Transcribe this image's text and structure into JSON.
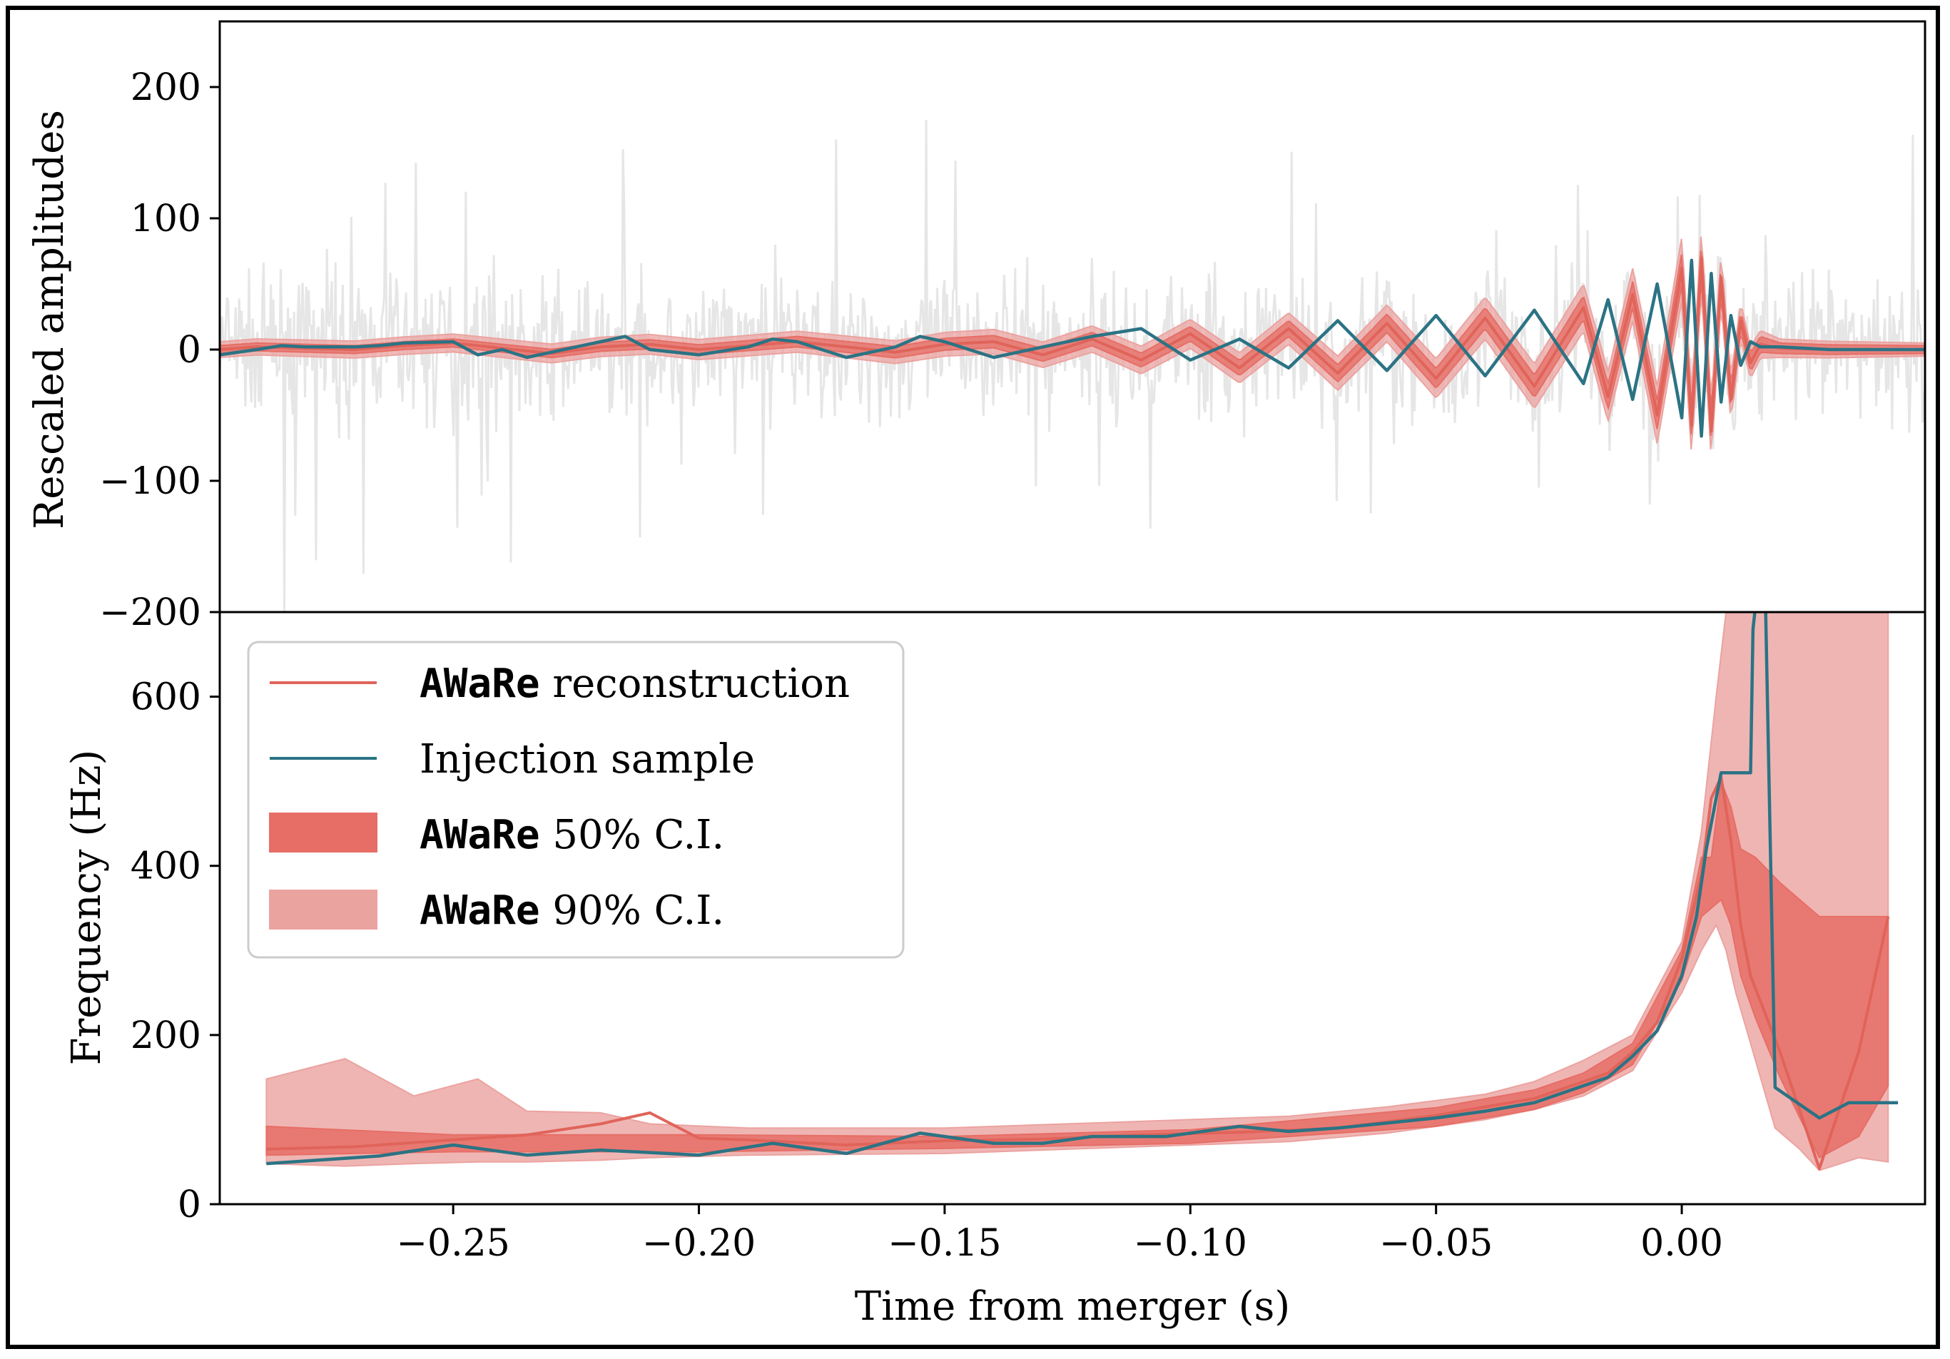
{
  "colors": {
    "reconstruction": "#e0645a",
    "injection": "#2b7384",
    "ci50": "#e66e66",
    "ci90": "#eba3a0",
    "data": "#e6e6e6"
  },
  "chart_data": [
    {
      "type": "line",
      "panel": "top",
      "xlabel": "",
      "ylabel": "Rescaled amplitudes",
      "xlim": [
        -0.2975,
        0.0495
      ],
      "ylim": [
        -200,
        250
      ],
      "yticks": [
        200,
        100,
        0,
        -100,
        -200
      ],
      "ytick_labels": [
        "200",
        "100",
        "0",
        "−100",
        "−200"
      ],
      "series": [
        {
          "name": "AWaRe reconstruction",
          "x": [
            -0.2975,
            -0.29,
            -0.28,
            -0.27,
            -0.26,
            -0.25,
            -0.24,
            -0.23,
            -0.22,
            -0.21,
            -0.2,
            -0.19,
            -0.18,
            -0.17,
            -0.16,
            -0.15,
            -0.14,
            -0.13,
            -0.12,
            -0.11,
            -0.1,
            -0.09,
            -0.08,
            -0.07,
            -0.06,
            -0.05,
            -0.04,
            -0.03,
            -0.02,
            -0.015,
            -0.01,
            -0.005,
            0.0,
            0.002,
            0.004,
            0.006,
            0.008,
            0.01,
            0.012,
            0.014,
            0.016,
            0.02,
            0.03,
            0.04,
            0.0495
          ],
          "values": [
            0,
            2,
            1,
            0,
            3,
            5,
            1,
            -3,
            2,
            4,
            0,
            3,
            6,
            2,
            -2,
            4,
            6,
            -4,
            8,
            -8,
            12,
            -14,
            16,
            -18,
            20,
            -22,
            24,
            -28,
            32,
            -36,
            42,
            -50,
            62,
            -58,
            70,
            -62,
            55,
            -38,
            22,
            -10,
            4,
            1,
            0,
            0,
            0
          ]
        },
        {
          "name": "Injection sample",
          "x": [
            -0.2975,
            -0.29,
            -0.285,
            -0.28,
            -0.27,
            -0.265,
            -0.26,
            -0.25,
            -0.245,
            -0.24,
            -0.235,
            -0.23,
            -0.22,
            -0.215,
            -0.21,
            -0.2,
            -0.19,
            -0.185,
            -0.18,
            -0.17,
            -0.16,
            -0.155,
            -0.15,
            -0.14,
            -0.13,
            -0.12,
            -0.11,
            -0.1,
            -0.09,
            -0.08,
            -0.07,
            -0.06,
            -0.05,
            -0.04,
            -0.03,
            -0.02,
            -0.015,
            -0.01,
            -0.005,
            0.0,
            0.002,
            0.004,
            0.006,
            0.008,
            0.01,
            0.012,
            0.014,
            0.016,
            0.02,
            0.03,
            0.04,
            0.0495
          ],
          "values": [
            -4,
            0,
            3,
            2,
            2,
            3,
            5,
            6,
            -4,
            0,
            -6,
            -2,
            6,
            10,
            0,
            -4,
            2,
            8,
            6,
            -6,
            2,
            10,
            6,
            -6,
            2,
            10,
            16,
            -8,
            8,
            -14,
            22,
            -16,
            26,
            -20,
            30,
            -26,
            38,
            -38,
            50,
            -52,
            68,
            -66,
            58,
            -40,
            26,
            -12,
            6,
            2,
            2,
            0,
            0,
            0
          ]
        }
      ],
      "bands": [
        {
          "name": "AWaRe 50% C.I.",
          "x": [
            -0.2975,
            -0.24,
            -0.18,
            -0.12,
            -0.08,
            -0.06,
            -0.04,
            -0.02,
            -0.01,
            0.0,
            0.006,
            0.012,
            0.02,
            0.0495
          ],
          "halfwidth": [
            3,
            3,
            4,
            5,
            6,
            7,
            8,
            9,
            10,
            12,
            12,
            8,
            4,
            3
          ]
        },
        {
          "name": "AWaRe 90% C.I.",
          "x": [
            -0.2975,
            -0.24,
            -0.18,
            -0.12,
            -0.08,
            -0.06,
            -0.04,
            -0.02,
            -0.01,
            0.0,
            0.006,
            0.012,
            0.02,
            0.0495
          ],
          "halfwidth": [
            6,
            7,
            8,
            10,
            12,
            14,
            16,
            18,
            20,
            24,
            22,
            14,
            7,
            5
          ]
        }
      ]
    },
    {
      "type": "line",
      "panel": "bottom",
      "xlabel": "Time from merger (s)",
      "ylabel": "Frequency (Hz)",
      "xlim": [
        -0.2975,
        0.0495
      ],
      "ylim": [
        0,
        700
      ],
      "xticks": [
        -0.25,
        -0.2,
        -0.15,
        -0.1,
        -0.05,
        0.0
      ],
      "xtick_labels": [
        "−0.25",
        "−0.20",
        "−0.15",
        "−0.10",
        "−0.05",
        "0.00"
      ],
      "yticks": [
        0,
        200,
        400,
        600
      ],
      "ytick_labels": [
        "0",
        "200",
        "400",
        "600"
      ],
      "legend": {
        "position": "top-left",
        "entries": [
          {
            "mono": "AWaRe",
            "text": " reconstruction"
          },
          {
            "mono": "",
            "text": "Injection sample"
          },
          {
            "mono": "AWaRe",
            "text": " 50% C.I."
          },
          {
            "mono": "AWaRe",
            "text": " 90% C.I."
          }
        ]
      },
      "series": [
        {
          "name": "AWaRe reconstruction",
          "x": [
            -0.288,
            -0.27,
            -0.25,
            -0.235,
            -0.22,
            -0.21,
            -0.2,
            -0.19,
            -0.17,
            -0.15,
            -0.13,
            -0.11,
            -0.09,
            -0.07,
            -0.05,
            -0.04,
            -0.03,
            -0.02,
            -0.015,
            -0.01,
            -0.005,
            0.0,
            0.004,
            0.006,
            0.008,
            0.01,
            0.012,
            0.014,
            0.02,
            0.028,
            0.036,
            0.042
          ],
          "values": [
            65,
            68,
            76,
            82,
            95,
            108,
            78,
            76,
            70,
            75,
            77,
            82,
            85,
            90,
            105,
            115,
            125,
            145,
            155,
            180,
            215,
            290,
            390,
            480,
            505,
            430,
            330,
            270,
            180,
            42,
            180,
            340
          ]
        },
        {
          "name": "Injection sample",
          "x": [
            -0.288,
            -0.265,
            -0.25,
            -0.235,
            -0.22,
            -0.2,
            -0.185,
            -0.17,
            -0.155,
            -0.14,
            -0.13,
            -0.12,
            -0.105,
            -0.09,
            -0.08,
            -0.07,
            -0.06,
            -0.05,
            -0.04,
            -0.03,
            -0.02,
            -0.015,
            -0.01,
            -0.005,
            0.0,
            0.003,
            0.005,
            0.008,
            0.011,
            0.014,
            0.0145,
            0.016,
            0.017,
            0.019,
            0.028,
            0.034,
            0.044
          ],
          "values": [
            48,
            57,
            70,
            58,
            64,
            58,
            72,
            60,
            84,
            72,
            72,
            80,
            80,
            92,
            86,
            90,
            96,
            102,
            110,
            120,
            140,
            150,
            175,
            205,
            270,
            340,
            420,
            510,
            510,
            510,
            680,
            760,
            720,
            138,
            102,
            120,
            120
          ]
        }
      ],
      "bands": [
        {
          "name": "AWaRe 50% C.I.",
          "x": [
            -0.288,
            -0.25,
            -0.2,
            -0.15,
            -0.1,
            -0.05,
            -0.03,
            -0.02,
            -0.01,
            0.0,
            0.004,
            0.006,
            0.008,
            0.01,
            0.012,
            0.015,
            0.02,
            0.028,
            0.036,
            0.042
          ],
          "lower": [
            58,
            62,
            62,
            66,
            72,
            92,
            112,
            132,
            165,
            265,
            340,
            350,
            360,
            330,
            270,
            220,
            150,
            55,
            80,
            140
          ],
          "upper": [
            92,
            82,
            82,
            80,
            88,
            114,
            135,
            155,
            190,
            300,
            410,
            410,
            500,
            470,
            420,
            410,
            380,
            340,
            340,
            340
          ]
        },
        {
          "name": "AWaRe 90% C.I.",
          "x": [
            -0.288,
            -0.272,
            -0.258,
            -0.245,
            -0.235,
            -0.22,
            -0.21,
            -0.19,
            -0.15,
            -0.12,
            -0.1,
            -0.08,
            -0.06,
            -0.04,
            -0.03,
            -0.02,
            -0.01,
            0.0,
            0.004,
            0.007,
            0.009,
            0.011,
            0.015,
            0.019,
            0.024,
            0.028,
            0.036,
            0.042
          ],
          "lower": [
            48,
            45,
            48,
            50,
            50,
            52,
            55,
            58,
            60,
            66,
            70,
            74,
            84,
            100,
            112,
            128,
            158,
            250,
            300,
            330,
            300,
            250,
            170,
            90,
            65,
            40,
            55,
            50
          ],
          "upper": [
            148,
            172,
            128,
            148,
            110,
            108,
            95,
            90,
            90,
            96,
            100,
            104,
            115,
            130,
            145,
            170,
            200,
            310,
            440,
            600,
            700,
            700,
            700,
            700,
            700,
            700,
            700,
            700
          ]
        }
      ],
      "noise_seed": 7
    }
  ]
}
